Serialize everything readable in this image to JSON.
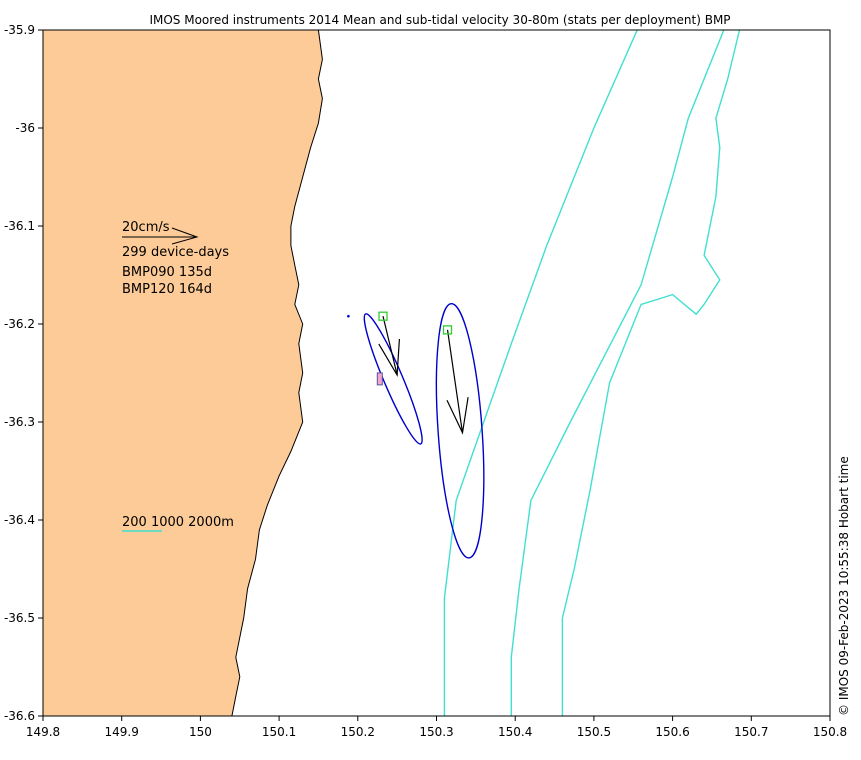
{
  "title": "IMOS Moored instruments 2014 Mean and sub-tidal velocity 30-80m (stats per deployment) BMP",
  "footer": "© IMOS 09-Feb-2023 10:55:38 Hobart time",
  "colors": {
    "land": "#fdcb98",
    "isobath": "#40e0d0",
    "ellipse": "#0000cd",
    "mooring": "#32cd32",
    "arrow": "#000000"
  },
  "chart_data": {
    "type": "map",
    "xlim": [
      149.8,
      150.8
    ],
    "ylim": [
      -36.6,
      -35.9
    ],
    "x_ticks": [
      "149.8",
      "149.9",
      "150",
      "150.1",
      "150.2",
      "150.3",
      "150.4",
      "150.5",
      "150.6",
      "150.7",
      "150.8"
    ],
    "y_ticks": [
      "-35.9",
      "-36",
      "-36.1",
      "-36.2",
      "-36.3",
      "-36.4",
      "-36.5",
      "-36.6"
    ],
    "legend": {
      "scale_label": "20cm/s",
      "device_days": "299 device-days",
      "deployments": [
        "BMP090 135d",
        "BMP120 164d"
      ],
      "isobaths_label": "200 1000 2000m"
    },
    "moorings": [
      {
        "name": "BMP090",
        "lon": 150.232,
        "lat": -36.192,
        "u": 0.018,
        "v": -0.06
      },
      {
        "name": "BMP120",
        "lon": 150.314,
        "lat": -36.206,
        "u": 0.019,
        "v": -0.105
      }
    ],
    "ellipses": [
      {
        "lon": 150.245,
        "lat": -36.256,
        "semi_major": 0.072,
        "semi_minor": 0.012,
        "angle_deg": -67
      },
      {
        "lon": 150.33,
        "lat": -36.309,
        "semi_major": 0.13,
        "semi_minor": 0.028,
        "angle_deg": -86
      }
    ],
    "isobaths": [
      {
        "depth": 200,
        "points": [
          [
            150.31,
            -36.6
          ],
          [
            150.31,
            -36.48
          ],
          [
            150.325,
            -36.38
          ],
          [
            150.36,
            -36.3
          ],
          [
            150.395,
            -36.22
          ],
          [
            150.44,
            -36.12
          ],
          [
            150.5,
            -36.0
          ],
          [
            150.555,
            -35.9
          ]
        ]
      },
      {
        "depth": 1000,
        "points": [
          [
            150.395,
            -36.6
          ],
          [
            150.395,
            -36.54
          ],
          [
            150.405,
            -36.47
          ],
          [
            150.42,
            -36.38
          ],
          [
            150.47,
            -36.3
          ],
          [
            150.515,
            -36.23
          ],
          [
            150.56,
            -36.16
          ],
          [
            150.6,
            -36.05
          ],
          [
            150.62,
            -35.99
          ],
          [
            150.665,
            -35.9
          ]
        ]
      },
      {
        "depth": 2000,
        "points": [
          [
            150.46,
            -36.6
          ],
          [
            150.46,
            -36.5
          ],
          [
            150.475,
            -36.45
          ],
          [
            150.495,
            -36.37
          ],
          [
            150.52,
            -36.26
          ],
          [
            150.56,
            -36.18
          ],
          [
            150.6,
            -36.17
          ],
          [
            150.63,
            -36.19
          ],
          [
            150.64,
            -36.18
          ],
          [
            150.66,
            -36.155
          ],
          [
            150.64,
            -36.13
          ],
          [
            150.655,
            -36.07
          ],
          [
            150.66,
            -36.02
          ],
          [
            150.655,
            -35.99
          ],
          [
            150.67,
            -35.95
          ],
          [
            150.685,
            -35.9
          ]
        ]
      }
    ],
    "coastline": [
      [
        150.04,
        -36.6
      ],
      [
        150.045,
        -36.58
      ],
      [
        150.05,
        -36.56
      ],
      [
        150.045,
        -36.54
      ],
      [
        150.055,
        -36.5
      ],
      [
        150.06,
        -36.47
      ],
      [
        150.07,
        -36.44
      ],
      [
        150.075,
        -36.41
      ],
      [
        150.085,
        -36.385
      ],
      [
        150.1,
        -36.355
      ],
      [
        150.115,
        -36.33
      ],
      [
        150.13,
        -36.3
      ],
      [
        150.125,
        -36.27
      ],
      [
        150.13,
        -36.25
      ],
      [
        150.125,
        -36.22
      ],
      [
        150.13,
        -36.2
      ],
      [
        150.12,
        -36.18
      ],
      [
        150.125,
        -36.16
      ],
      [
        150.12,
        -36.14
      ],
      [
        150.115,
        -36.12
      ],
      [
        150.115,
        -36.1
      ],
      [
        150.12,
        -36.08
      ],
      [
        150.13,
        -36.05
      ],
      [
        150.14,
        -36.02
      ],
      [
        150.15,
        -35.995
      ],
      [
        150.155,
        -35.97
      ],
      [
        150.15,
        -35.95
      ],
      [
        150.155,
        -35.93
      ],
      [
        150.15,
        -35.9
      ]
    ]
  }
}
